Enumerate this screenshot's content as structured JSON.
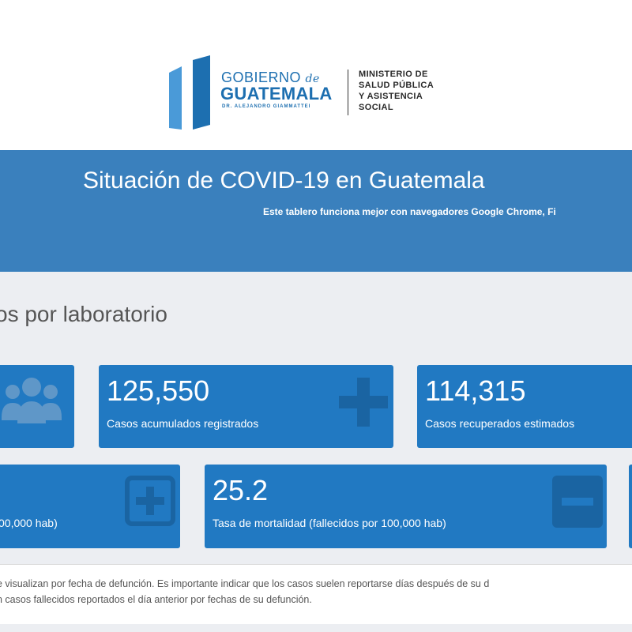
{
  "logo": {
    "gobierno": "GOBIERNO",
    "de": "de",
    "guatemala": "GUATEMALA",
    "dr": "DR. ALEJANDRO GIAMMATTEI",
    "ministerio_lines": [
      "MINISTERIO DE",
      "SALUD PÚBLICA",
      "Y ASISTENCIA",
      "SOCIAL"
    ],
    "icon": "guatemala-flag-bars-icon"
  },
  "banner": {
    "title": "Situación de COVID-19 en Guatemala",
    "subtitle": "Este tablero funciona mejor con navegadores Google Chrome, Fi"
  },
  "section": {
    "title": "os por laboratorio"
  },
  "cards": {
    "people": {
      "icon": "people-group-icon"
    },
    "cumulative": {
      "value": "125,550",
      "label": "Casos acumulados registrados",
      "icon": "plus-icon"
    },
    "recovered": {
      "value": "114,315",
      "label": "Casos recuperados estimados"
    },
    "incidence": {
      "label": "00,000 hab)",
      "icon": "plus-square-icon"
    },
    "mortality": {
      "value": "25.2",
      "label": "Tasa de mortalidad (fallecidos por 100,000 hab)",
      "icon": "minus-square-icon"
    }
  },
  "note": {
    "line1": "e visualizan por fecha de defunción. Es importante indicar que los casos suelen reportarse días después de su d",
    "line2": "n casos fallecidos reportados el día anterior por fechas de su defunción."
  },
  "colors": {
    "banner": "#3a80bd",
    "card": "#2179c2",
    "brand": "#1d6fb0",
    "background": "#eceef2"
  }
}
